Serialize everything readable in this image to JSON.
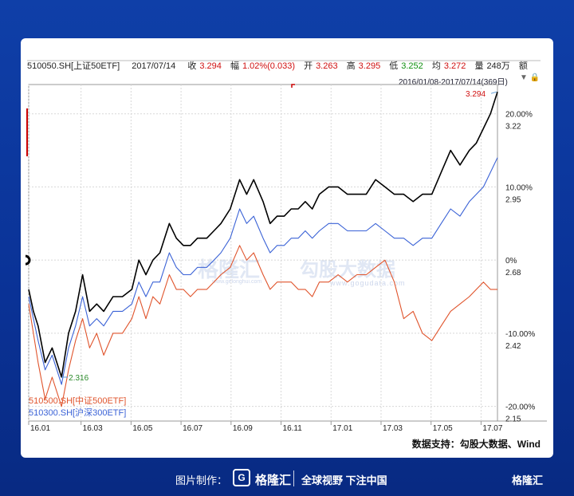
{
  "header": {
    "code": "510050.SH[上证50ETF]",
    "date": "2017/07/14",
    "close_label": "收",
    "close_value": "3.294",
    "change_label": "幅",
    "change_value": "1.02%(0.033)",
    "open_label": "开",
    "open_value": "3.263",
    "high_label": "高",
    "high_value": "3.295",
    "low_label": "低",
    "low_value": "3.252",
    "avg_label": "均",
    "avg_value": "3.272",
    "vol_label": "量",
    "vol_value": "248万",
    "amount_label": "额",
    "range": "2016/01/08-2017/07/14(369日)"
  },
  "watermark": {
    "brand1": "格隆汇",
    "brand1_site": "www.gelonghui.com",
    "brand2": "勾股大数据",
    "brand2_site": "www.gogudata.com"
  },
  "chart_data": {
    "type": "line",
    "x_ticks": [
      "16.01",
      "16.03",
      "16.05",
      "16.07",
      "16.09",
      "16.11",
      "17.01",
      "17.03",
      "17.05",
      "17.07"
    ],
    "y_pct_ticks": [
      "20.00%",
      "10.00%",
      "0%",
      "-10.00%",
      "-20.00%"
    ],
    "y_price_ticks": [
      "3.22",
      "2.95",
      "2.68",
      "2.42",
      "2.15"
    ],
    "ylim_pct": [
      -22,
      24
    ],
    "x_range": [
      "2016/01/08",
      "2017/07/14"
    ],
    "annotations": {
      "high": "3.294",
      "low": "2.316"
    },
    "series": [
      {
        "name": "510050.SH[上证50ETF]",
        "color": "#000000",
        "x": [
          0,
          0.01,
          0.02,
          0.035,
          0.05,
          0.07,
          0.085,
          0.1,
          0.115,
          0.13,
          0.145,
          0.16,
          0.18,
          0.2,
          0.22,
          0.235,
          0.25,
          0.265,
          0.28,
          0.3,
          0.315,
          0.33,
          0.345,
          0.36,
          0.38,
          0.395,
          0.41,
          0.43,
          0.45,
          0.465,
          0.48,
          0.5,
          0.515,
          0.53,
          0.545,
          0.56,
          0.575,
          0.59,
          0.605,
          0.62,
          0.64,
          0.66,
          0.68,
          0.7,
          0.72,
          0.74,
          0.76,
          0.78,
          0.8,
          0.82,
          0.84,
          0.86,
          0.88,
          0.9,
          0.92,
          0.94,
          0.955,
          0.97,
          0.985,
          1
        ],
        "y": [
          -4,
          -7,
          -9,
          -14,
          -12,
          -16,
          -10,
          -7,
          -2,
          -7,
          -6,
          -7,
          -5,
          -5,
          -4,
          0,
          -2,
          0,
          1,
          5,
          3,
          2,
          2,
          3,
          3,
          4,
          5,
          7,
          11,
          9,
          11,
          8,
          5,
          6,
          6,
          7,
          7,
          8,
          7,
          9,
          10,
          10,
          9,
          9,
          9,
          11,
          10,
          9,
          9,
          8,
          9,
          9,
          12,
          15,
          13,
          15,
          16,
          18,
          20,
          23
        ]
      },
      {
        "name": "510300.SH[沪深300ETF]",
        "color": "#3a62d6",
        "x": [
          0,
          0.01,
          0.02,
          0.035,
          0.05,
          0.07,
          0.085,
          0.1,
          0.115,
          0.13,
          0.145,
          0.16,
          0.18,
          0.2,
          0.22,
          0.235,
          0.25,
          0.265,
          0.28,
          0.3,
          0.315,
          0.33,
          0.345,
          0.36,
          0.38,
          0.395,
          0.41,
          0.43,
          0.45,
          0.465,
          0.48,
          0.5,
          0.515,
          0.53,
          0.545,
          0.56,
          0.575,
          0.59,
          0.605,
          0.62,
          0.64,
          0.66,
          0.68,
          0.7,
          0.72,
          0.74,
          0.76,
          0.78,
          0.8,
          0.82,
          0.84,
          0.86,
          0.88,
          0.9,
          0.92,
          0.94,
          0.955,
          0.97,
          0.985,
          1
        ],
        "y": [
          -5,
          -8,
          -11,
          -15,
          -13,
          -17,
          -12,
          -9,
          -5,
          -9,
          -8,
          -9,
          -7,
          -7,
          -6,
          -3,
          -5,
          -3,
          -3,
          1,
          -1,
          -2,
          -2,
          -1,
          -1,
          0,
          1,
          3,
          7,
          5,
          6,
          3,
          1,
          2,
          2,
          3,
          3,
          4,
          3,
          4,
          5,
          5,
          4,
          4,
          4,
          5,
          4,
          3,
          3,
          2,
          3,
          3,
          5,
          7,
          6,
          8,
          9,
          10,
          12,
          14
        ]
      },
      {
        "name": "510500.SH[中证500ETF]",
        "color": "#e0542c",
        "x": [
          0,
          0.01,
          0.02,
          0.035,
          0.05,
          0.07,
          0.085,
          0.1,
          0.115,
          0.13,
          0.145,
          0.16,
          0.18,
          0.2,
          0.22,
          0.235,
          0.25,
          0.265,
          0.28,
          0.3,
          0.315,
          0.33,
          0.345,
          0.36,
          0.38,
          0.395,
          0.41,
          0.43,
          0.45,
          0.465,
          0.48,
          0.5,
          0.515,
          0.53,
          0.545,
          0.56,
          0.575,
          0.59,
          0.605,
          0.62,
          0.64,
          0.66,
          0.68,
          0.7,
          0.72,
          0.74,
          0.76,
          0.78,
          0.8,
          0.82,
          0.84,
          0.86,
          0.88,
          0.9,
          0.92,
          0.94,
          0.955,
          0.97,
          0.985,
          1
        ],
        "y": [
          -6,
          -10,
          -14,
          -19,
          -16,
          -20,
          -15,
          -11,
          -8,
          -12,
          -10,
          -13,
          -10,
          -10,
          -8,
          -5,
          -8,
          -5,
          -6,
          -2,
          -4,
          -4,
          -5,
          -4,
          -4,
          -3,
          -2,
          -1,
          2,
          0,
          1,
          -2,
          -4,
          -3,
          -3,
          -3,
          -4,
          -4,
          -5,
          -3,
          -3,
          -2,
          -3,
          -2,
          -2,
          -1,
          0,
          -3,
          -8,
          -7,
          -10,
          -11,
          -9,
          -7,
          -6,
          -5,
          -4,
          -3,
          -4,
          -4
        ]
      }
    ]
  },
  "legend": {
    "item1": "510500.SH[中证500ETF]",
    "item2": "510300.SH[沪深300ETF]"
  },
  "source": "数据支持：勾股大数据、Wind",
  "footer": {
    "made_by": "图片制作：",
    "logo_letter": "G",
    "brand": "格隆汇",
    "slogan": "全球视野 下注中国",
    "corner_brand": "格隆汇"
  }
}
